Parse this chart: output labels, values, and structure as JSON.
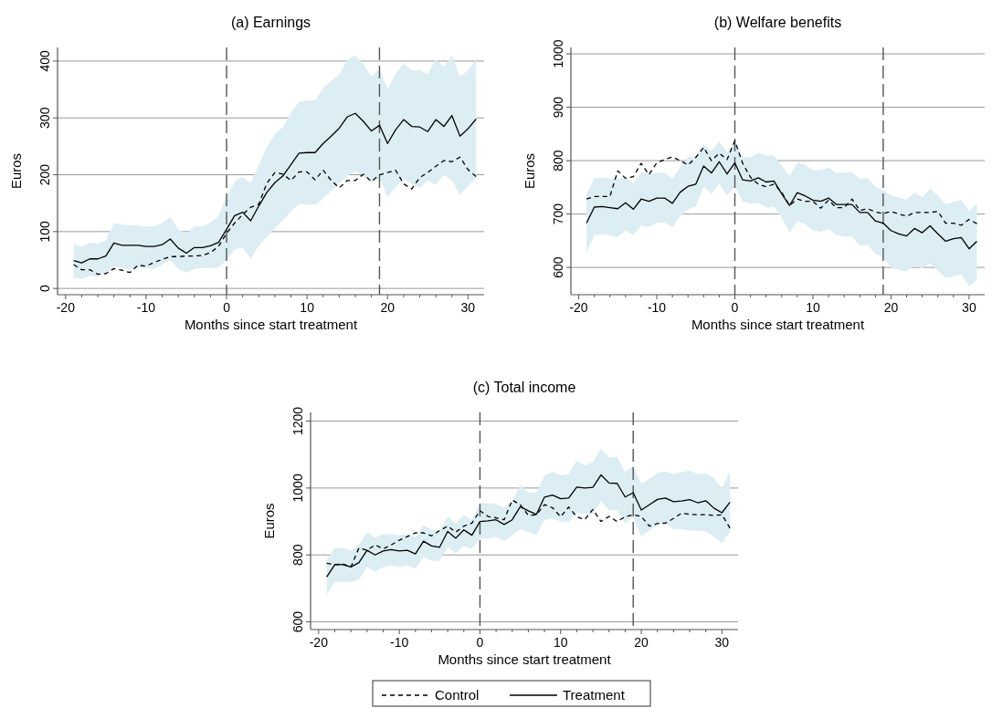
{
  "chart_data": [
    {
      "type": "line",
      "title": "(a) Earnings",
      "xlabel": "Months since start treatment",
      "ylabel": "Euros",
      "x": [
        -19,
        -18,
        -17,
        -16,
        -15,
        -14,
        -13,
        -12,
        -11,
        -10,
        -9,
        -8,
        -7,
        -6,
        -5,
        -4,
        -3,
        -2,
        -1,
        0,
        1,
        2,
        3,
        4,
        5,
        6,
        7,
        8,
        9,
        10,
        11,
        12,
        13,
        14,
        15,
        16,
        17,
        18,
        19,
        20,
        21,
        22,
        23,
        24,
        25,
        26,
        27,
        28,
        29,
        30,
        31
      ],
      "xlim": [
        -21,
        32
      ],
      "xticks": [
        -20,
        -10,
        0,
        10,
        20,
        30
      ],
      "ylim": [
        -11,
        424
      ],
      "yticks": [
        0,
        100,
        200,
        300,
        400
      ],
      "grid": "y",
      "marker": "none",
      "series": [
        {
          "color": "#000000",
          "line_style": "dashed",
          "values": [
            42,
            33,
            33,
            25,
            26,
            35,
            32,
            28,
            41,
            39,
            46,
            51,
            56,
            56,
            57,
            57,
            58,
            63,
            74,
            97,
            115,
            130,
            143,
            148,
            185,
            204,
            201,
            190,
            205,
            205,
            191,
            208,
            190,
            177,
            190,
            190,
            201,
            188,
            200,
            204,
            208,
            184,
            175,
            195,
            204,
            215,
            225,
            223,
            231,
            209,
            197
          ]
        },
        {
          "color": "#000000",
          "line_style": "solid",
          "values": [
            49,
            45,
            52,
            52,
            57,
            80,
            76,
            76,
            76,
            74,
            74,
            77,
            87,
            71,
            62,
            72,
            72,
            75,
            81,
            104,
            128,
            134,
            119,
            145,
            169,
            186,
            198,
            218,
            238,
            239,
            239,
            255,
            268,
            282,
            302,
            308,
            294,
            277,
            287,
            255,
            279,
            297,
            285,
            284,
            276,
            297,
            285,
            304,
            268,
            281,
            298
          ],
          "upper": [
            79,
            73,
            81,
            78,
            85,
            115,
            112,
            111,
            111,
            109,
            109,
            115,
            126,
            104,
            96,
            109,
            109,
            116,
            128,
            161,
            188,
            197,
            185,
            217,
            249,
            271,
            284,
            309,
            328,
            331,
            331,
            352,
            365,
            376,
            403,
            410,
            395,
            373,
            387,
            351,
            378,
            396,
            384,
            384,
            377,
            403,
            389,
            410,
            372,
            384,
            403
          ],
          "lower": [
            18,
            17,
            22,
            21,
            26,
            39,
            36,
            34,
            36,
            36,
            34,
            42,
            50,
            34,
            28,
            34,
            36,
            36,
            37,
            50,
            68,
            72,
            53,
            75,
            91,
            106,
            120,
            136,
            148,
            148,
            147,
            158,
            172,
            185,
            198,
            206,
            198,
            186,
            194,
            161,
            178,
            193,
            184,
            177,
            190,
            182,
            200,
            190,
            165,
            180,
            195
          ]
        }
      ],
      "ref_lines": [
        {
          "axis": "x",
          "value": 0,
          "color": "#555555",
          "line_style": "dashed"
        },
        {
          "axis": "x",
          "value": 19,
          "color": "#555555",
          "line_style": "dashed"
        }
      ]
    },
    {
      "type": "line",
      "title": "(b) Welfare benefits",
      "xlabel": "Months since start treatment",
      "ylabel": "Euros",
      "x": [
        -19,
        -18,
        -17,
        -16,
        -15,
        -14,
        -13,
        -12,
        -11,
        -10,
        -9,
        -8,
        -7,
        -6,
        -5,
        -4,
        -3,
        -2,
        -1,
        0,
        1,
        2,
        3,
        4,
        5,
        6,
        7,
        8,
        9,
        10,
        11,
        12,
        13,
        14,
        15,
        16,
        17,
        18,
        19,
        20,
        21,
        22,
        23,
        24,
        25,
        26,
        27,
        28,
        29,
        30,
        31
      ],
      "xlim": [
        -21,
        32
      ],
      "xticks": [
        -20,
        -10,
        0,
        10,
        20,
        30
      ],
      "ylim": [
        549,
        1012
      ],
      "yticks": [
        600,
        700,
        800,
        900,
        1000
      ],
      "grid": "y",
      "marker": "none",
      "series": [
        {
          "color": "#000000",
          "line_style": "dashed",
          "values": [
            728,
            733,
            733,
            733,
            781,
            767,
            770,
            795,
            774,
            796,
            802,
            807,
            800,
            792,
            806,
            825,
            800,
            814,
            802,
            837,
            795,
            769,
            756,
            751,
            756,
            741,
            716,
            728,
            724,
            724,
            711,
            726,
            712,
            712,
            728,
            707,
            710,
            704,
            701,
            705,
            700,
            696,
            703,
            703,
            703,
            705,
            683,
            683,
            679,
            690,
            682
          ]
        },
        {
          "color": "#000000",
          "line_style": "solid",
          "values": [
            683,
            713,
            714,
            712,
            710,
            721,
            709,
            728,
            724,
            730,
            730,
            720,
            741,
            752,
            756,
            790,
            777,
            798,
            775,
            796,
            764,
            762,
            768,
            760,
            762,
            738,
            716,
            740,
            734,
            726,
            724,
            730,
            718,
            718,
            718,
            703,
            703,
            687,
            683,
            669,
            663,
            659,
            673,
            665,
            678,
            663,
            649,
            654,
            656,
            635,
            649
          ],
          "upper": [
            738,
            767,
            768,
            767,
            766,
            768,
            758,
            778,
            775,
            777,
            777,
            766,
            789,
            806,
            809,
            831,
            818,
            836,
            816,
            837,
            806,
            806,
            815,
            809,
            810,
            791,
            771,
            796,
            792,
            782,
            782,
            787,
            777,
            778,
            778,
            766,
            767,
            751,
            745,
            735,
            731,
            727,
            740,
            731,
            747,
            735,
            718,
            723,
            727,
            705,
            721
          ],
          "lower": [
            629,
            660,
            662,
            660,
            657,
            669,
            661,
            679,
            676,
            684,
            684,
            676,
            696,
            709,
            714,
            752,
            738,
            758,
            735,
            752,
            724,
            719,
            721,
            712,
            714,
            693,
            665,
            687,
            681,
            669,
            667,
            672,
            661,
            658,
            658,
            642,
            642,
            626,
            620,
            599,
            596,
            592,
            604,
            598,
            608,
            594,
            580,
            584,
            587,
            565,
            577
          ]
        }
      ],
      "ref_lines": [
        {
          "axis": "x",
          "value": 0,
          "color": "#555555",
          "line_style": "dashed"
        },
        {
          "axis": "x",
          "value": 19,
          "color": "#555555",
          "line_style": "dashed"
        }
      ]
    },
    {
      "type": "line",
      "title": "(c) Total income",
      "xlabel": "Months since start treatment",
      "ylabel": "Euros",
      "x": [
        -19,
        -18,
        -17,
        -16,
        -15,
        -14,
        -13,
        -12,
        -11,
        -10,
        -9,
        -8,
        -7,
        -6,
        -5,
        -4,
        -3,
        -2,
        -1,
        0,
        1,
        2,
        3,
        4,
        5,
        6,
        7,
        8,
        9,
        10,
        11,
        12,
        13,
        14,
        15,
        16,
        17,
        18,
        19,
        20,
        21,
        22,
        23,
        24,
        25,
        26,
        27,
        28,
        29,
        30,
        31
      ],
      "xlim": [
        -21,
        32
      ],
      "xticks": [
        -20,
        -10,
        0,
        10,
        20,
        30
      ],
      "ylim": [
        577,
        1226
      ],
      "yticks": [
        600,
        800,
        1000,
        1200
      ],
      "grid": "y",
      "marker": "none",
      "legend": "bottom",
      "series": [
        {
          "name": "Control",
          "color": "#000000",
          "line_style": "dashed",
          "values": [
            775,
            771,
            773,
            764,
            821,
            814,
            830,
            818,
            830,
            844,
            855,
            866,
            866,
            857,
            873,
            886,
            868,
            886,
            895,
            932,
            915,
            911,
            905,
            964,
            950,
            918,
            920,
            950,
            941,
            914,
            943,
            914,
            906,
            936,
            900,
            915,
            900,
            914,
            920,
            915,
            886,
            894,
            895,
            909,
            925,
            921,
            920,
            920,
            918,
            920,
            880
          ]
        },
        {
          "name": "Treatment",
          "color": "#000000",
          "line_style": "solid",
          "values": [
            734,
            771,
            771,
            764,
            777,
            814,
            800,
            812,
            816,
            812,
            814,
            803,
            841,
            827,
            823,
            870,
            850,
            875,
            859,
            900,
            902,
            905,
            891,
            905,
            944,
            932,
            921,
            973,
            979,
            968,
            970,
            1003,
            1000,
            1002,
            1039,
            1015,
            1014,
            973,
            986,
            934,
            950,
            966,
            970,
            959,
            961,
            965,
            956,
            962,
            940,
            926,
            958
          ],
          "upper": [
            786,
            821,
            821,
            813,
            830,
            868,
            852,
            862,
            862,
            859,
            862,
            853,
            889,
            875,
            873,
            914,
            894,
            918,
            905,
            955,
            955,
            952,
            941,
            959,
            1009,
            986,
            986,
            1038,
            1048,
            1038,
            1041,
            1082,
            1068,
            1077,
            1118,
            1091,
            1093,
            1048,
            1066,
            1014,
            1027,
            1045,
            1050,
            1041,
            1048,
            1052,
            1041,
            1045,
            1030,
            1000,
            1050
          ],
          "lower": [
            682,
            718,
            721,
            718,
            727,
            764,
            750,
            764,
            768,
            764,
            768,
            759,
            794,
            782,
            782,
            823,
            805,
            827,
            818,
            848,
            850,
            853,
            841,
            859,
            877,
            868,
            859,
            905,
            909,
            900,
            898,
            925,
            923,
            921,
            961,
            934,
            934,
            895,
            914,
            855,
            873,
            889,
            895,
            877,
            877,
            873,
            873,
            870,
            855,
            835,
            870
          ]
        }
      ],
      "ref_lines": [
        {
          "axis": "x",
          "value": 0,
          "color": "#555555",
          "line_style": "dashed"
        },
        {
          "axis": "x",
          "value": 19,
          "color": "#555555",
          "line_style": "dashed"
        }
      ]
    }
  ]
}
